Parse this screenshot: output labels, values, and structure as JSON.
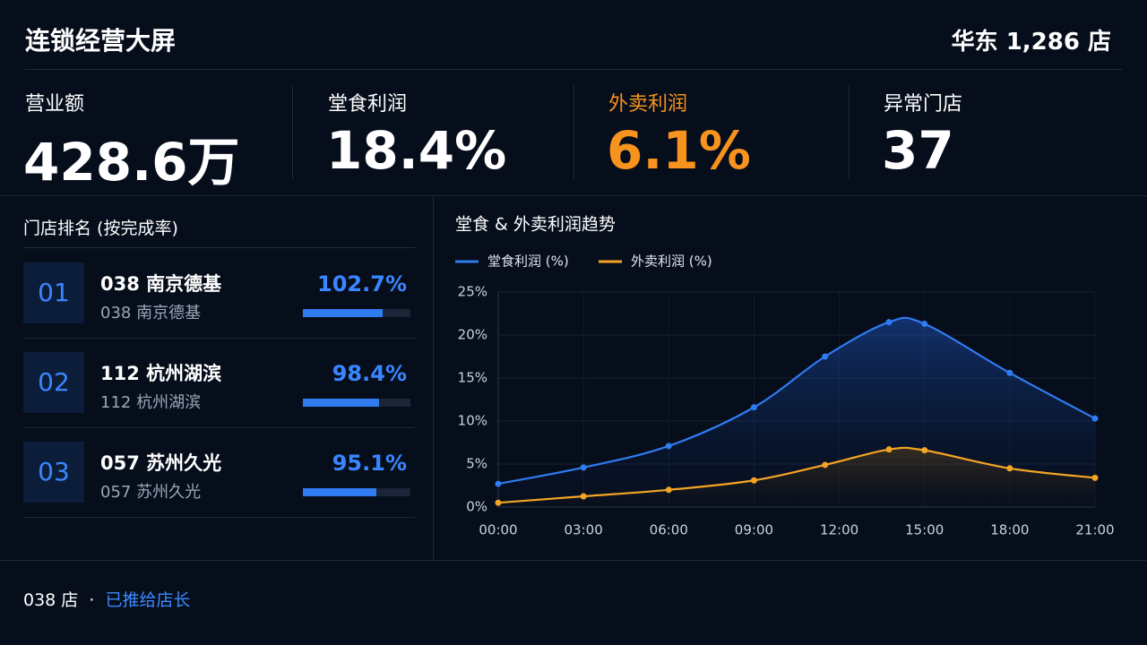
{
  "header": {
    "title": "连锁经营大屏",
    "region": "华东 1,286 店"
  },
  "kpis": [
    {
      "label": "营业额",
      "value": "428.6万"
    },
    {
      "label": "堂食利润",
      "value": "18.4%"
    },
    {
      "label": "外卖利润",
      "value": "6.1%"
    },
    {
      "label": "异常门店",
      "value": "37"
    }
  ],
  "ranking": {
    "title": "门店排名 (按完成率)",
    "rows": [
      {
        "rank": "01",
        "name": "038 南京德基",
        "sub": "038 南京德基",
        "value": 102.7,
        "value_label": "102.7%"
      },
      {
        "rank": "02",
        "name": "112 杭州湖滨",
        "sub": "112 杭州湖滨",
        "value": 98.4,
        "value_label": "98.4%"
      },
      {
        "rank": "03",
        "name": "057 苏州久光",
        "sub": "057 苏州久光",
        "value": 95.1,
        "value_label": "95.1%"
      }
    ]
  },
  "chart_data": {
    "type": "line",
    "title": "堂食 & 外卖利润趋势",
    "x": [
      0,
      3,
      6,
      9,
      11.5,
      13.75,
      15,
      18,
      21
    ],
    "xlim": [
      0,
      21
    ],
    "xticks": [
      {
        "value": 0,
        "label": "00:00"
      },
      {
        "value": 3,
        "label": "03:00"
      },
      {
        "value": 6,
        "label": "06:00"
      },
      {
        "value": 9,
        "label": "09:00"
      },
      {
        "value": 12,
        "label": "12:00"
      },
      {
        "value": 15,
        "label": "15:00"
      },
      {
        "value": 18,
        "label": "18:00"
      },
      {
        "value": 21,
        "label": "21:00"
      }
    ],
    "ylim": [
      0,
      25
    ],
    "yticks": [
      {
        "value": 0,
        "label": "0%"
      },
      {
        "value": 5,
        "label": "5%"
      },
      {
        "value": 10,
        "label": "10%"
      },
      {
        "value": 15,
        "label": "15%"
      },
      {
        "value": 20,
        "label": "20%"
      },
      {
        "value": 25,
        "label": "25%"
      }
    ],
    "grid": true,
    "series": [
      {
        "name": "堂食利润 (%)",
        "color": "#2f7bf0",
        "values": [
          2.7,
          4.6,
          7.1,
          11.6,
          17.5,
          21.5,
          21.3,
          15.6,
          10.3
        ]
      },
      {
        "name": "外卖利润 (%)",
        "color": "#f5a524",
        "values": [
          0.5,
          1.25,
          2.0,
          3.1,
          4.9,
          6.7,
          6.6,
          4.5,
          3.4
        ]
      }
    ]
  },
  "footer": {
    "store": "038 店",
    "sep": "·",
    "status": "已推给店长"
  }
}
